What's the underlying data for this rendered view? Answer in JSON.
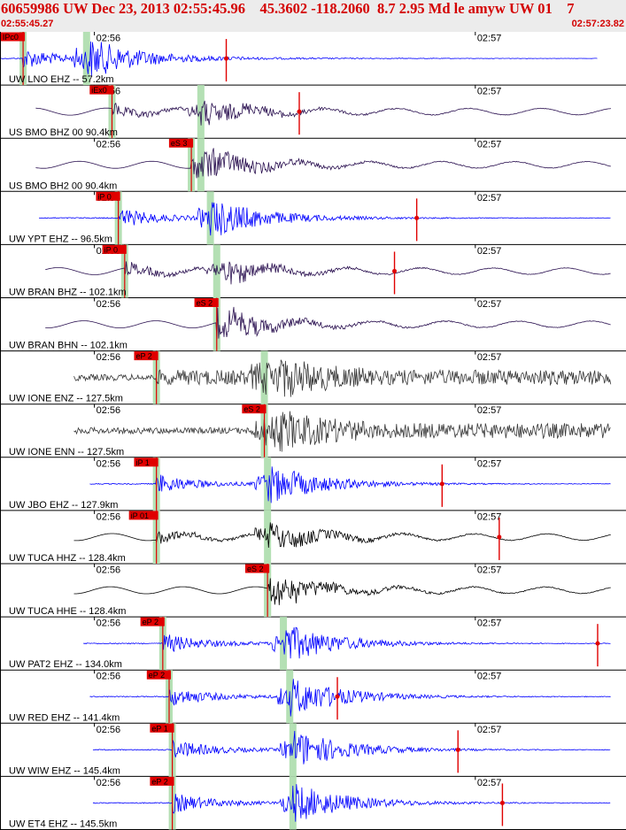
{
  "header": {
    "title": "60659986 UW Dec 23, 2013 02:55:45.96    45.3602 -118.2060  8.7 2.95 Md le amyw UW 01    7",
    "start_time": "02:55:45.27",
    "end_time": "02:57:23.82"
  },
  "colors": {
    "header_text": "#d40000",
    "header_bg": "#ececec",
    "pick": "#e00000",
    "window": "#b4e0b4"
  },
  "chart_data": {
    "type": "line",
    "title": "60659986 UW Dec 23, 2013 02:55:45.96    45.3602 -118.2060  8.7 2.95 Md le amyw UW 01    7",
    "x_range": [
      "02:55:45.27",
      "02:57:23.82"
    ],
    "minute_ticks": [
      "02:56",
      "02:57"
    ],
    "grid": false,
    "traces": [
      {
        "label": "UW LNO EHZ -- 57.2km",
        "channel_type": "short-period",
        "color": "#0000ff",
        "pick": "IPc0",
        "pick_time": 3.5,
        "s_time": 13.5,
        "start": 0,
        "end": 94,
        "coda": 35.5
      },
      {
        "label": "US BMO BHZ 00 90.4km",
        "channel_type": "broadband",
        "color": "#2a1050",
        "pick": "iEx0",
        "pick_time": 17.5,
        "s_time": 31.5,
        "start": 5.5,
        "end": 100,
        "coda": 47
      },
      {
        "label": "US BMO BH2 00 90.4km",
        "channel_type": "broadband",
        "color": "#2a1050",
        "pick": "eS 3",
        "pick_time": 30,
        "s_time": 31.5,
        "start": 5.5,
        "end": 100,
        "coda": null
      },
      {
        "label": "UW YPT EHZ -- 96.5km",
        "channel_type": "short-period",
        "color": "#0000ff",
        "pick": "iP 0",
        "pick_time": 18.5,
        "s_time": 33,
        "start": 6,
        "end": 100,
        "coda": 65.5
      },
      {
        "label": "UW BRAN BHZ -- 102.1km",
        "channel_type": "broadband",
        "color": "#2a1050",
        "pick": "iP 0",
        "pick_time": 19.5,
        "s_time": 34,
        "start": 7,
        "end": 100,
        "coda": 62
      },
      {
        "label": "UW BRAN BHN -- 102.1km",
        "channel_type": "broadband",
        "color": "#2a1050",
        "pick": "eS 2",
        "pick_time": 34,
        "s_time": 34,
        "start": 7,
        "end": 100,
        "coda": null
      },
      {
        "label": "UW IONE ENZ -- 127.5km",
        "channel_type": "strong-motion",
        "color": "#383838",
        "pick": "eP 2",
        "pick_time": 24.5,
        "s_time": 41.5,
        "start": 11.5,
        "end": 104,
        "coda": null
      },
      {
        "label": "UW IONE ENN -- 127.5km",
        "channel_type": "strong-motion",
        "color": "#383838",
        "pick": "eS 2",
        "pick_time": 41.5,
        "s_time": 41.5,
        "start": 11.5,
        "end": 104,
        "coda": null
      },
      {
        "label": "UW JBO EHZ -- 127.9km",
        "channel_type": "short-period",
        "color": "#0000ff",
        "pick": "iP 1",
        "pick_time": 24.5,
        "s_time": 42,
        "start": 14,
        "end": 104,
        "coda": 69.5
      },
      {
        "label": "UW TUCA HHZ -- 128.4km",
        "channel_type": "broadband",
        "color": "#000000",
        "pick": "iP 01",
        "pick_time": 24.5,
        "s_time": 42,
        "start": 11.5,
        "end": 104,
        "coda": 78.5
      },
      {
        "label": "UW TUCA HHE -- 128.4km",
        "channel_type": "broadband",
        "color": "#000000",
        "pick": "eS 2",
        "pick_time": 42,
        "s_time": 42,
        "start": 11.5,
        "end": 104,
        "coda": null
      },
      {
        "label": "UW PAT2 EHZ -- 134.0km",
        "channel_type": "short-period",
        "color": "#0000ff",
        "pick": "eP 2",
        "pick_time": 25.5,
        "s_time": 44.5,
        "start": 13,
        "end": 104,
        "coda": 94
      },
      {
        "label": "UW RED EHZ -- 141.4km",
        "channel_type": "short-period",
        "color": "#0000ff",
        "pick": "eP 2",
        "pick_time": 26.5,
        "s_time": 45.5,
        "start": 14,
        "end": 104,
        "coda": 53
      },
      {
        "label": "UW WIW EHZ -- 145.4km",
        "channel_type": "short-period",
        "color": "#0000ff",
        "pick": "eP 1",
        "pick_time": 27,
        "s_time": 46,
        "start": 14.5,
        "end": 104,
        "coda": 72
      },
      {
        "label": "UW ET4 EHZ -- 145.5km",
        "channel_type": "short-period",
        "color": "#0000ff",
        "pick": "eP 2",
        "pick_time": 27,
        "s_time": 46,
        "start": 14.5,
        "end": 104,
        "coda": 79
      }
    ]
  }
}
